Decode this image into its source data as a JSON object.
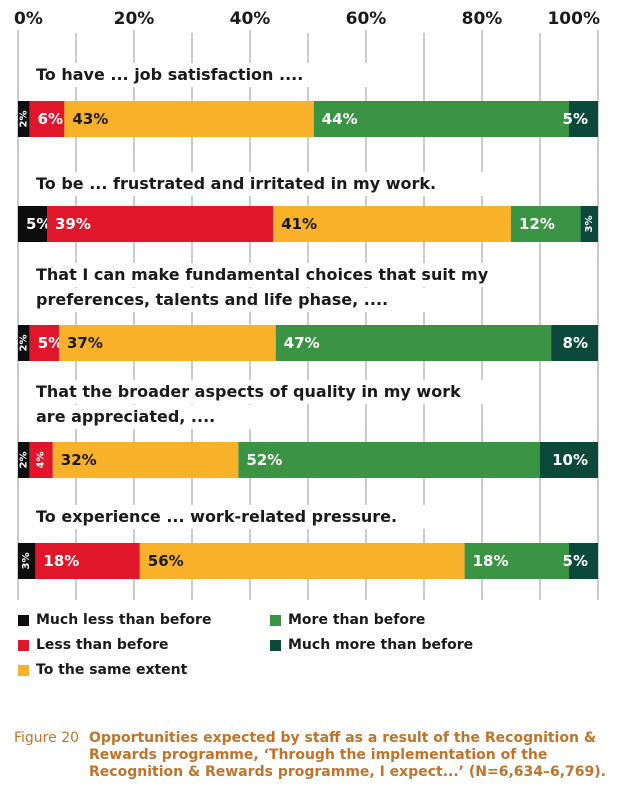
{
  "colors": {
    "much_less": "#0d0d0d",
    "less": "#e0162b",
    "same": "#f9b12a",
    "more": "#3a9444",
    "much_more": "#0b4a3a",
    "caption": "#c0732a"
  },
  "chart_data": {
    "type": "bar",
    "orientation": "horizontal",
    "stacked": true,
    "xlim": [
      0,
      100
    ],
    "x_ticks": [
      "0%",
      "20%",
      "40%",
      "60%",
      "80%",
      "100%"
    ],
    "categories": [
      [
        "To have ... job satisfaction ...."
      ],
      [
        "To be ... frustrated and irritated in my work."
      ],
      [
        "That I can make fundamental choices that suit my",
        "preferences, talents and life phase, ...."
      ],
      [
        "That the broader aspects of quality in my work",
        "are appreciated, ...."
      ],
      [
        "To experience ... work-related pressure."
      ]
    ],
    "series": [
      {
        "name": "Much less than before",
        "color": "#0d0d0d",
        "values": [
          2,
          5,
          2,
          2,
          3
        ],
        "labels": [
          "2%",
          "5%",
          "2%",
          "2%",
          "3%"
        ]
      },
      {
        "name": "Less than before",
        "color": "#e0162b",
        "values": [
          6,
          39,
          5,
          4,
          18
        ],
        "labels": [
          "6%",
          "39%",
          "5%",
          "4%",
          "18%"
        ]
      },
      {
        "name": "To the same extent",
        "color": "#f9b12a",
        "values": [
          43,
          41,
          37,
          32,
          56
        ],
        "labels": [
          "43%",
          "41%",
          "37%",
          "32%",
          "56%"
        ]
      },
      {
        "name": "More than before",
        "color": "#3a9444",
        "values": [
          44,
          12,
          47,
          52,
          18
        ],
        "labels": [
          "44%",
          "12%",
          "47%",
          "52%",
          "18%"
        ]
      },
      {
        "name": "Much more than before",
        "color": "#0b4a3a",
        "values": [
          5,
          3,
          8,
          10,
          5
        ],
        "labels": [
          "5%",
          "3%",
          "8%",
          "10%",
          "5%"
        ]
      }
    ],
    "legend": {
      "placement": "bottom",
      "items": [
        "Much less than before",
        "More than before",
        "Less than before",
        "Much more than before",
        "To the same extent"
      ]
    },
    "grid": true
  },
  "caption": {
    "label": "Figure 20",
    "text": "Opportunities expected by staff as a result of the Recognition & Rewards programme, ‘Through the implementation of the Recognition & Rewards programme, I expect...’ (N=6,634–6,769)."
  }
}
